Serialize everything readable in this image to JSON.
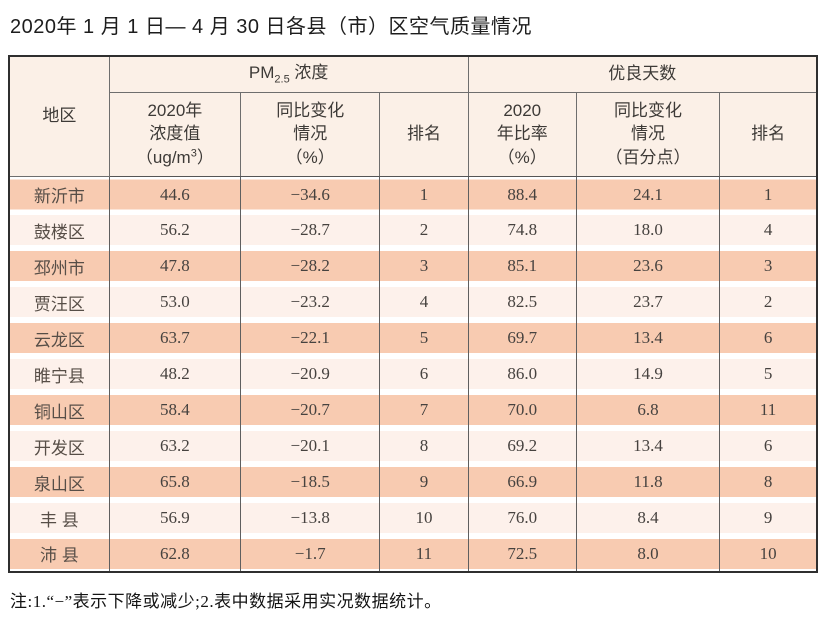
{
  "title": "2020年 1 月 1 日— 4 月 30 日各县（市）区空气质量情况",
  "table": {
    "columns": {
      "region": "地区",
      "pm_group": {
        "prefix": "PM",
        "sub": "2.5",
        "suffix": " 浓度"
      },
      "good_group": "优良天数",
      "pm_value": {
        "line1": "2020年",
        "line2": "浓度值",
        "line3_open": "（ug/m",
        "line3_sup": "3",
        "line3_close": "）"
      },
      "pm_change": {
        "line1": "同比变化",
        "line2": "情况",
        "line3": "（%）"
      },
      "pm_rank": "排名",
      "good_ratio": {
        "line1": "2020",
        "line2": "年比率",
        "line3": "（%）"
      },
      "good_change": {
        "line1": "同比变化",
        "line2": "情况",
        "line3": "（百分点）"
      },
      "good_rank": "排名"
    },
    "rows": [
      {
        "region": "新沂市",
        "pm_value": "44.6",
        "pm_change": "−34.6",
        "pm_rank": "1",
        "good_ratio": "88.4",
        "good_change": "24.1",
        "good_rank": "1"
      },
      {
        "region": "鼓楼区",
        "pm_value": "56.2",
        "pm_change": "−28.7",
        "pm_rank": "2",
        "good_ratio": "74.8",
        "good_change": "18.0",
        "good_rank": "4"
      },
      {
        "region": "邳州市",
        "pm_value": "47.8",
        "pm_change": "−28.2",
        "pm_rank": "3",
        "good_ratio": "85.1",
        "good_change": "23.6",
        "good_rank": "3"
      },
      {
        "region": "贾汪区",
        "pm_value": "53.0",
        "pm_change": "−23.2",
        "pm_rank": "4",
        "good_ratio": "82.5",
        "good_change": "23.7",
        "good_rank": "2"
      },
      {
        "region": "云龙区",
        "pm_value": "63.7",
        "pm_change": "−22.1",
        "pm_rank": "5",
        "good_ratio": "69.7",
        "good_change": "13.4",
        "good_rank": "6"
      },
      {
        "region": "睢宁县",
        "pm_value": "48.2",
        "pm_change": "−20.9",
        "pm_rank": "6",
        "good_ratio": "86.0",
        "good_change": "14.9",
        "good_rank": "5"
      },
      {
        "region": "铜山区",
        "pm_value": "58.4",
        "pm_change": "−20.7",
        "pm_rank": "7",
        "good_ratio": "70.0",
        "good_change": "6.8",
        "good_rank": "11"
      },
      {
        "region": "开发区",
        "pm_value": "63.2",
        "pm_change": "−20.1",
        "pm_rank": "8",
        "good_ratio": "69.2",
        "good_change": "13.4",
        "good_rank": "6"
      },
      {
        "region": "泉山区",
        "pm_value": "65.8",
        "pm_change": "−18.5",
        "pm_rank": "9",
        "good_ratio": "66.9",
        "good_change": "11.8",
        "good_rank": "8"
      },
      {
        "region": "丰 县",
        "pm_value": "56.9",
        "pm_change": "−13.8",
        "pm_rank": "10",
        "good_ratio": "76.0",
        "good_change": "8.4",
        "good_rank": "9"
      },
      {
        "region": "沛 县",
        "pm_value": "62.8",
        "pm_change": "−1.7",
        "pm_rank": "11",
        "good_ratio": "72.5",
        "good_change": "8.0",
        "good_rank": "10"
      }
    ]
  },
  "footnote": "注:1.“−”表示下降或减少;2.表中数据采用实况数据统计。",
  "colors": {
    "row_stripe_odd": "#f8cbb1",
    "row_stripe_even": "#fdf1eb",
    "header_bg": "#fbf0e7",
    "border_outer": "#2f2f2f",
    "border_inner": "#5f5f5f",
    "text": "#46423f"
  }
}
